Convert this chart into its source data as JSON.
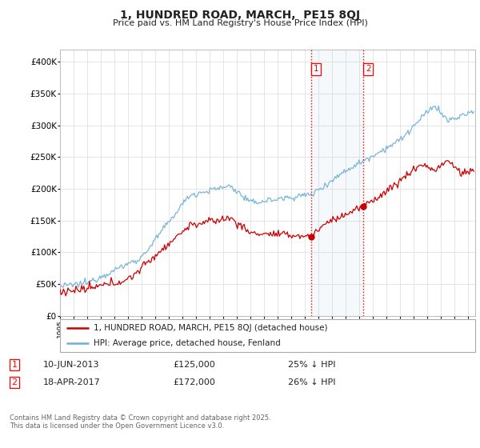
{
  "title": "1, HUNDRED ROAD, MARCH,  PE15 8QJ",
  "subtitle": "Price paid vs. HM Land Registry's House Price Index (HPI)",
  "ylim": [
    0,
    420000
  ],
  "yticks": [
    0,
    50000,
    100000,
    150000,
    200000,
    250000,
    300000,
    350000,
    400000
  ],
  "ytick_labels": [
    "£0",
    "£50K",
    "£100K",
    "£150K",
    "£200K",
    "£250K",
    "£300K",
    "£350K",
    "£400K"
  ],
  "xlim_start": 1995.0,
  "xlim_end": 2025.5,
  "hpi_color": "#6baed6",
  "price_color": "#cc0000",
  "sale1_date": 2013.44,
  "sale1_price": 125000,
  "sale1_label": "1",
  "sale2_date": 2017.29,
  "sale2_price": 172000,
  "sale2_label": "2",
  "legend_line1": "1, HUNDRED ROAD, MARCH, PE15 8QJ (detached house)",
  "legend_line2": "HPI: Average price, detached house, Fenland",
  "table_row1": [
    "1",
    "10-JUN-2013",
    "£125,000",
    "25% ↓ HPI"
  ],
  "table_row2": [
    "2",
    "18-APR-2017",
    "£172,000",
    "26% ↓ HPI"
  ],
  "footnote": "Contains HM Land Registry data © Crown copyright and database right 2025.\nThis data is licensed under the Open Government Licence v3.0.",
  "background_color": "#ffffff",
  "grid_color": "#e0e0e0"
}
